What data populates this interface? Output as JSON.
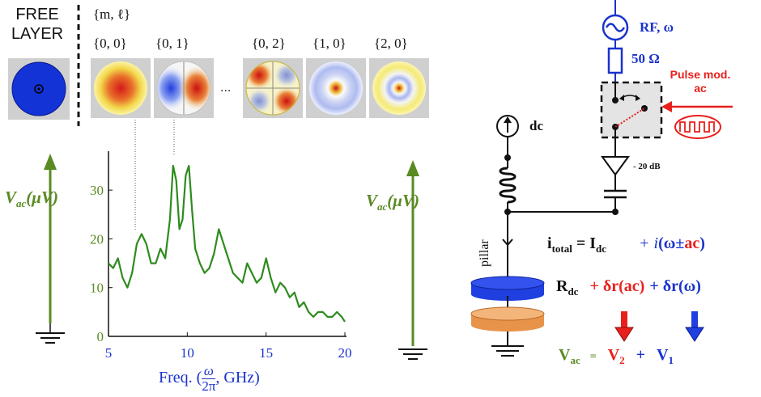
{
  "free_layer": {
    "line1": "FREE",
    "line2": "LAYER"
  },
  "modes": {
    "header": "{m, ℓ}",
    "items": [
      {
        "label": "{0, 0}",
        "pattern": "uniform"
      },
      {
        "label": "{0, 1}",
        "pattern": "dipole"
      },
      {
        "label": "{0, 2}",
        "pattern": "quadrupole"
      },
      {
        "label": "{1, 0}",
        "pattern": "radial-1"
      },
      {
        "label": "{2, 0}",
        "pattern": "radial-2"
      }
    ],
    "ellipsis": "..."
  },
  "chart_data": {
    "type": "line",
    "xlabel_prefix": "Freq. (",
    "xlabel_frac_num": "ω",
    "xlabel_frac_den": "2π",
    "xlabel_suffix": ", GHz)",
    "ylabel": "V",
    "ylabel_sub": "ac",
    "ylabel_unit": "(μV)",
    "xlim": [
      5,
      20
    ],
    "ylim": [
      0,
      35
    ],
    "x_ticks": [
      5,
      10,
      15,
      20
    ],
    "y_ticks": [
      0,
      10,
      20,
      30
    ],
    "line_color": "#2e8b1e",
    "series": [
      {
        "x": [
          5.0,
          5.3,
          5.6,
          5.9,
          6.2,
          6.5,
          6.8,
          7.1,
          7.4,
          7.7,
          8.0,
          8.3,
          8.6,
          8.9,
          9.1,
          9.3,
          9.5,
          9.7,
          9.9,
          10.1,
          10.3,
          10.5,
          10.8,
          11.1,
          11.4,
          11.7,
          12.0,
          12.3,
          12.6,
          12.9,
          13.2,
          13.5,
          13.8,
          14.1,
          14.4,
          14.7,
          15.0,
          15.3,
          15.6,
          15.9,
          16.2,
          16.5,
          16.8,
          17.1,
          17.4,
          17.7,
          18.0,
          18.3,
          18.6,
          18.9,
          19.2,
          19.5,
          19.8,
          20.0
        ],
        "y": [
          15,
          14,
          16,
          12,
          10,
          13,
          19,
          21,
          19,
          15,
          15,
          18,
          16,
          24,
          35,
          32,
          22,
          24,
          33,
          35,
          26,
          18,
          15,
          13,
          14,
          17,
          22,
          19,
          16,
          13,
          12,
          11,
          15,
          13,
          11,
          12,
          16,
          12,
          9,
          11,
          10,
          8,
          9,
          6,
          7,
          5,
          4,
          5,
          5,
          4,
          4,
          5,
          4,
          3
        ]
      }
    ]
  },
  "left_axis": {
    "label": "V",
    "sub": "ac",
    "unit": "(μV)"
  },
  "mid_axis": {
    "label": "V",
    "sub": "ac",
    "unit": "(μV)"
  },
  "circuit": {
    "rf_label": "RF, ω",
    "resistor_label": "50 Ω",
    "pulse_label_line1": "Pulse mod.",
    "pulse_label_line2": "ac",
    "dc_label": "dc",
    "attenuator_label": "- 20 dB",
    "pillar_label": "pillar",
    "eq1_lhs": "i",
    "eq1_lhs_sub": "total",
    "eq1_eq": "= I",
    "eq1_eq_sub": "dc",
    "eq1_plus": "+ i",
    "eq1_paren": "(ω±",
    "eq1_ac": "ac",
    "eq1_close": ")",
    "eq2_R": "R",
    "eq2_R_sub": "dc",
    "eq2_term1": "+ δr(ac)",
    "eq2_term2": "+ δr(ω)",
    "eq3_V": "V",
    "eq3_V_sub": "ac",
    "eq3_eq": "=",
    "eq3_V2": "V",
    "eq3_V2_sub": "2",
    "eq3_plus": "+",
    "eq3_V1": "V",
    "eq3_V1_sub": "1",
    "colors": {
      "green": "#5a8a23",
      "blue": "#1a33cc",
      "red": "#e8201c"
    }
  }
}
